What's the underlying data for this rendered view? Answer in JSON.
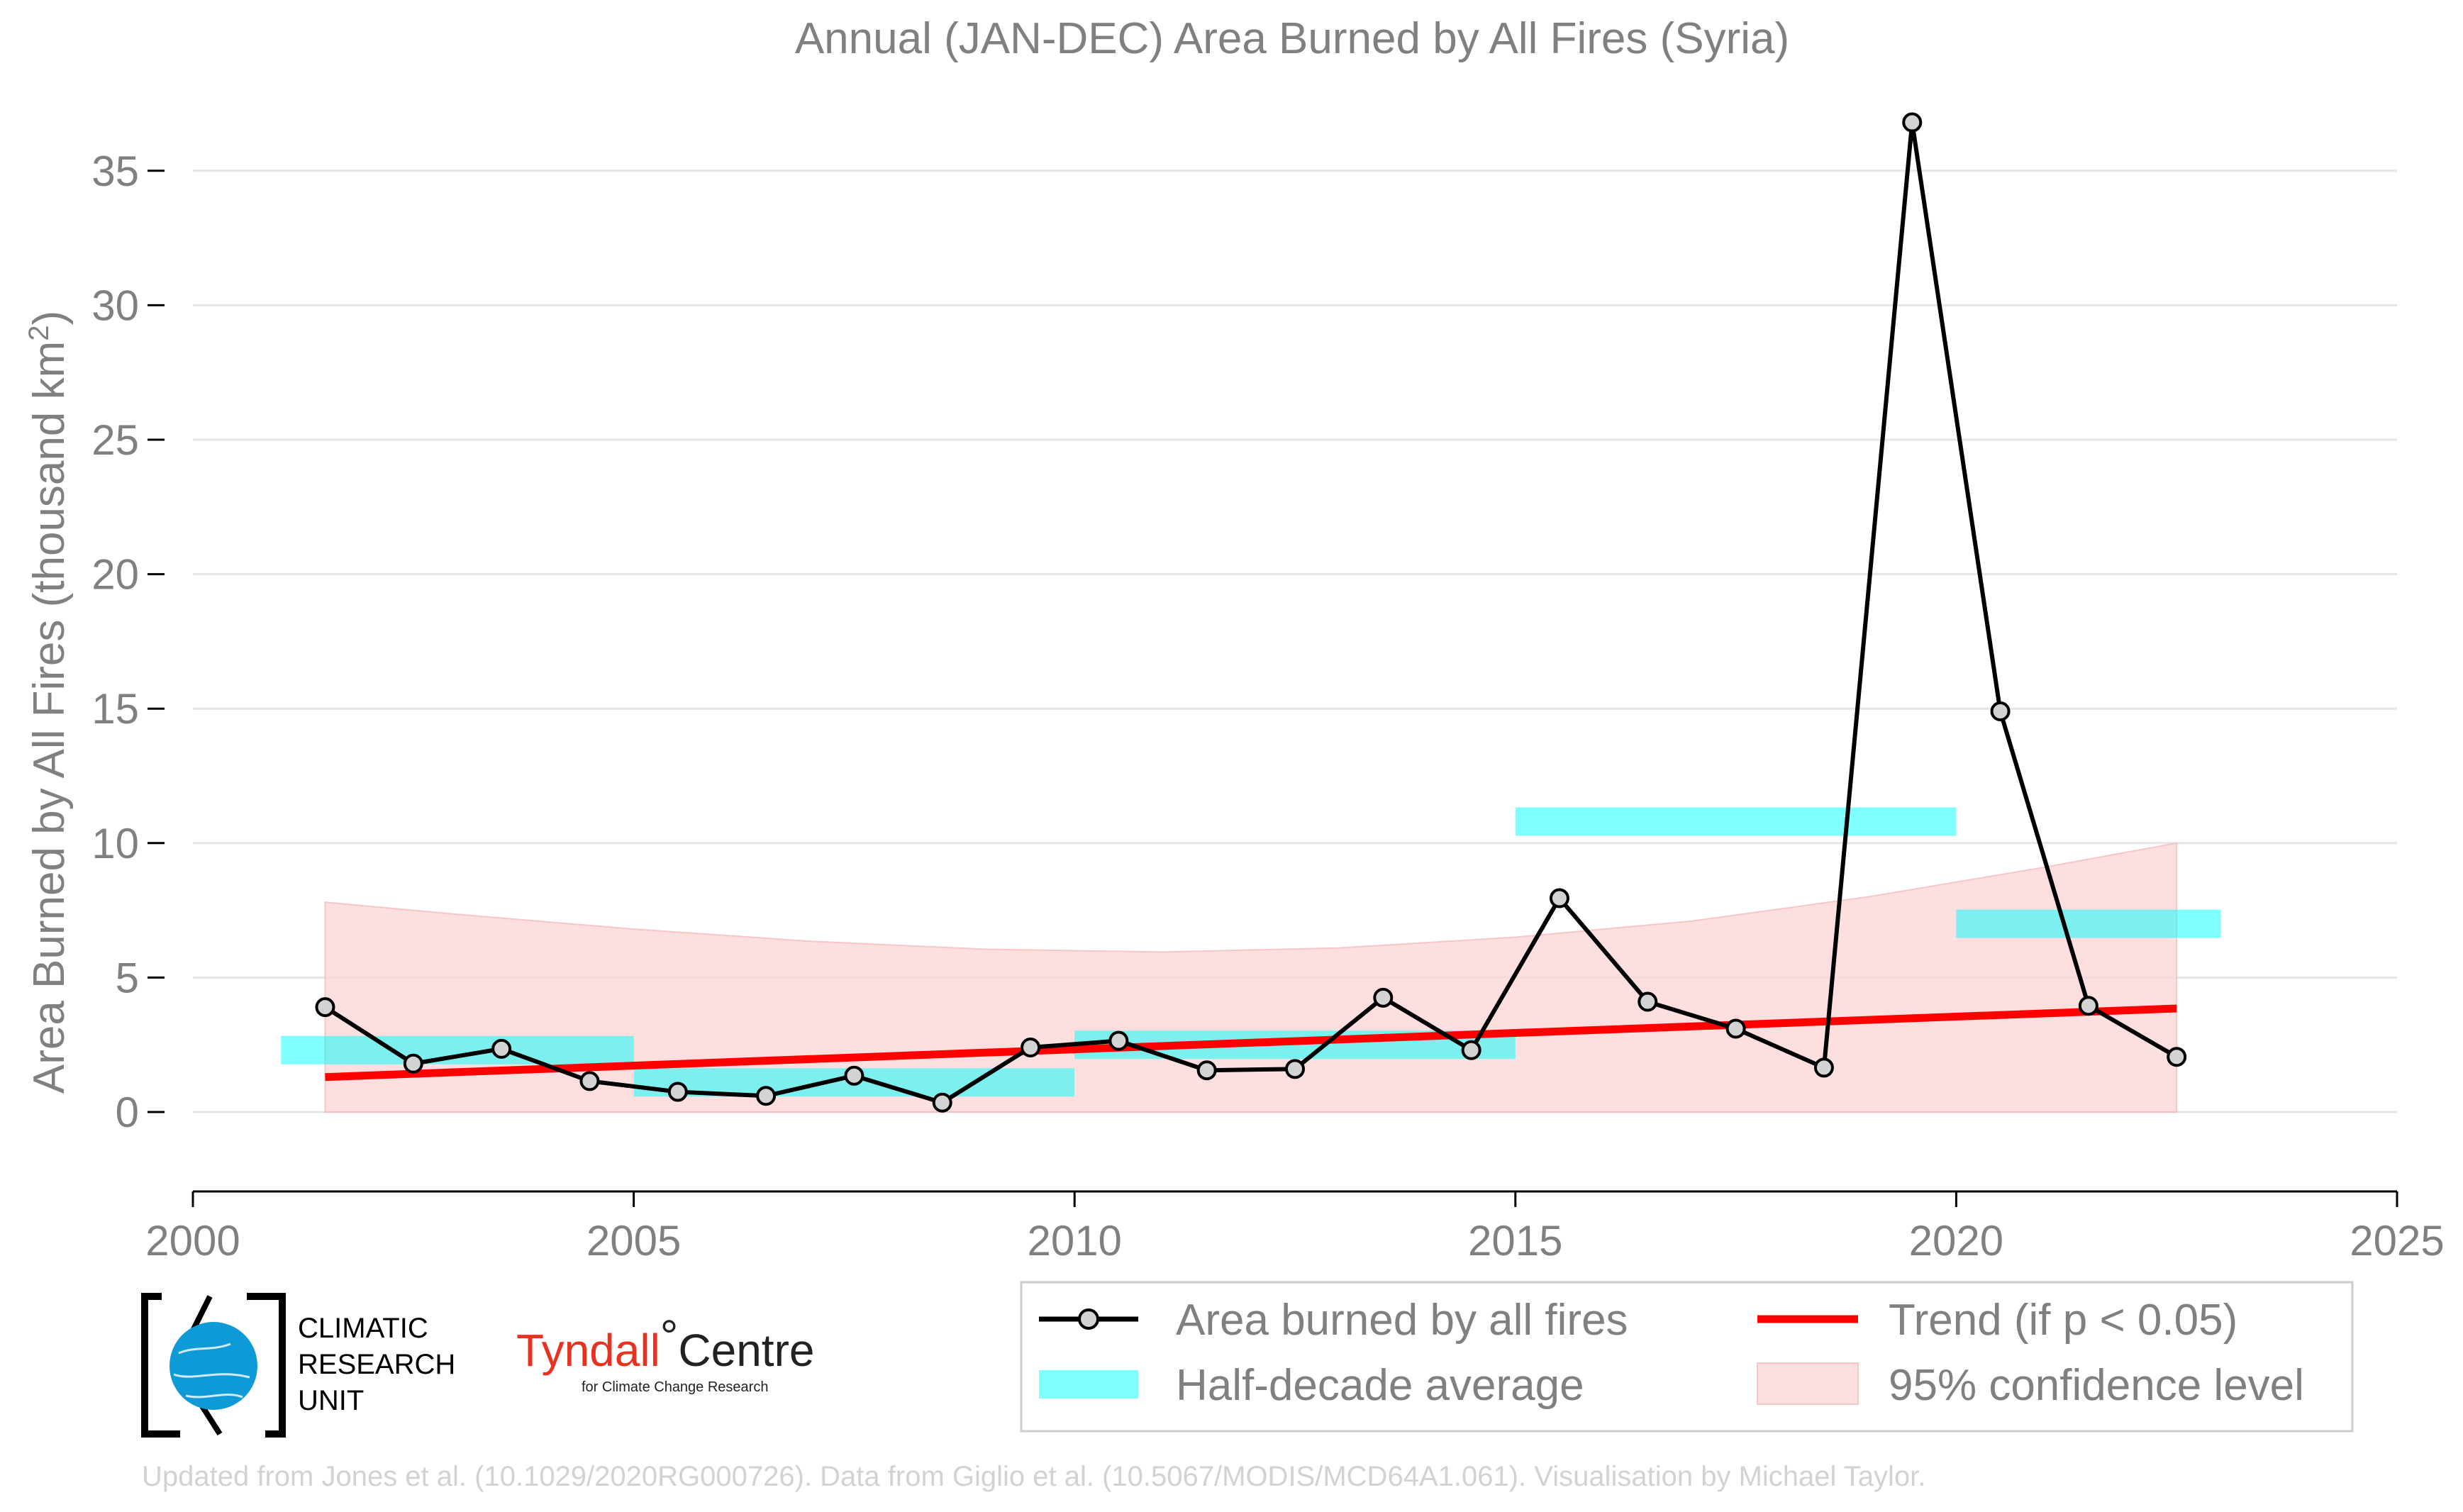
{
  "colors": {
    "series": "#000000",
    "marker_fill": "#d3d3d3",
    "half_decade": "#00ffff",
    "trend": "#ff0000",
    "confidence": "#fdd8d8",
    "text": "#808080",
    "grid": "#e6e6e6",
    "tyndall_red": "#e8321f",
    "cru_blue": "#0d9ad6"
  },
  "chart_data": {
    "type": "line",
    "title": "Annual (JAN-DEC) Area Burned by All Fires (Syria)",
    "ylabel_main": "Area Burned by All Fires (thousand km",
    "ylabel_sup": "2",
    "ylabel_end": ")",
    "xlim": [
      2000,
      2025
    ],
    "ylim": [
      -3,
      37.5
    ],
    "xticks": [
      2000,
      2005,
      2010,
      2015,
      2020,
      2025
    ],
    "yticks": [
      0,
      5,
      10,
      15,
      20,
      25,
      30,
      35
    ],
    "grid": "horizontal",
    "series": [
      {
        "name": "Area burned by all fires",
        "x": [
          2001.5,
          2002.5,
          2003.5,
          2004.5,
          2005.5,
          2006.5,
          2007.5,
          2008.5,
          2009.5,
          2010.5,
          2011.5,
          2012.5,
          2013.5,
          2014.5,
          2015.5,
          2016.5,
          2017.5,
          2018.5,
          2019.5,
          2020.5,
          2021.5,
          2022.5
        ],
        "y": [
          3.9,
          1.8,
          2.35,
          1.15,
          0.75,
          0.6,
          1.35,
          0.35,
          2.4,
          2.65,
          1.55,
          1.6,
          4.25,
          2.3,
          7.95,
          4.1,
          3.1,
          1.65,
          36.8,
          14.9,
          3.95,
          2.05
        ]
      }
    ],
    "half_decade_average": {
      "name": "Half-decade average",
      "segments": [
        {
          "x0": 2001.0,
          "x1": 2005.0,
          "y": 2.3
        },
        {
          "x0": 2005.0,
          "x1": 2010.0,
          "y": 1.1
        },
        {
          "x0": 2010.0,
          "x1": 2015.0,
          "y": 2.5
        },
        {
          "x0": 2015.0,
          "x1": 2020.0,
          "y": 10.8
        },
        {
          "x0": 2020.0,
          "x1": 2023.0,
          "y": 7.0
        }
      ]
    },
    "trend": {
      "name": "Trend (if p < 0.05)",
      "x": [
        2001.5,
        2022.5
      ],
      "y": [
        1.3,
        3.85
      ]
    },
    "confidence": {
      "name": "95% confidence level",
      "x": [
        2001.5,
        2003,
        2005,
        2007,
        2009,
        2011,
        2013,
        2015,
        2017,
        2019,
        2021,
        2022.5
      ],
      "upper": [
        7.8,
        7.35,
        6.8,
        6.35,
        6.05,
        5.95,
        6.1,
        6.5,
        7.1,
        8.0,
        9.1,
        10.0
      ],
      "lower": [
        0,
        0,
        0,
        0,
        0,
        0,
        0,
        0,
        0,
        0,
        0,
        0
      ]
    },
    "legend_position": "bottom-right"
  },
  "legend": {
    "items": [
      {
        "label": "Area burned by all fires"
      },
      {
        "label": "Trend (if p < 0.05)"
      },
      {
        "label": "Half-decade average"
      },
      {
        "label": "95% confidence level"
      }
    ]
  },
  "logos": {
    "cru_line1": "CLIMATIC",
    "cru_line2": "RESEARCH",
    "cru_line3": "UNIT",
    "tyndall_name": "Tyndall",
    "tyndall_degree": "°",
    "tyndall_centre": "Centre",
    "tyndall_sub": "for Climate Change Research"
  },
  "footer": "Updated from Jones et al. (10.1029/2020RG000726). Data from Giglio et al. (10.5067/MODIS/MCD64A1.061). Visualisation by Michael Taylor."
}
